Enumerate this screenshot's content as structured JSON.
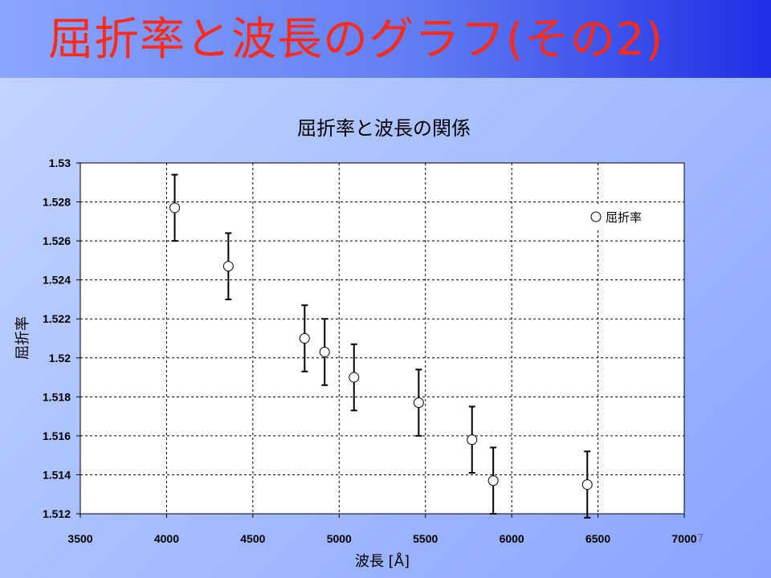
{
  "slide": {
    "title": "屈折率と波長のグラフ(その2)",
    "page_number": "7"
  },
  "colors": {
    "title": "#ff2a1a",
    "band_left": "#8aa6ff",
    "band_right": "#1f2fe6",
    "marker_fill": "#ffffff",
    "marker_stroke": "#000000"
  },
  "chart_data": {
    "type": "scatter",
    "title": "屈折率と波長の関係",
    "xlabel": "波長 [Å]",
    "ylabel": "屈折率",
    "xlim": [
      3500,
      7000
    ],
    "ylim": [
      1.512,
      1.53
    ],
    "x_ticks": [
      "3500",
      "4000",
      "4500",
      "5000",
      "5500",
      "6000",
      "6500",
      "7000"
    ],
    "y_ticks": [
      "1.512",
      "1.514",
      "1.516",
      "1.518",
      "1.52",
      "1.522",
      "1.524",
      "1.526",
      "1.528",
      "1.53"
    ],
    "grid": true,
    "legend_position": "top-right",
    "series": [
      {
        "name": "屈折率",
        "marker": "open-circle",
        "x": [
          4047,
          4358,
          4800,
          4916,
          5086,
          5461,
          5770,
          5893,
          6438
        ],
        "y": [
          1.5277,
          1.5247,
          1.521,
          1.5203,
          1.519,
          1.5177,
          1.5158,
          1.5137,
          1.5135
        ],
        "y_err": [
          0.0017,
          0.0017,
          0.0017,
          0.0017,
          0.0017,
          0.0017,
          0.0017,
          0.0017,
          0.0017
        ]
      }
    ]
  }
}
